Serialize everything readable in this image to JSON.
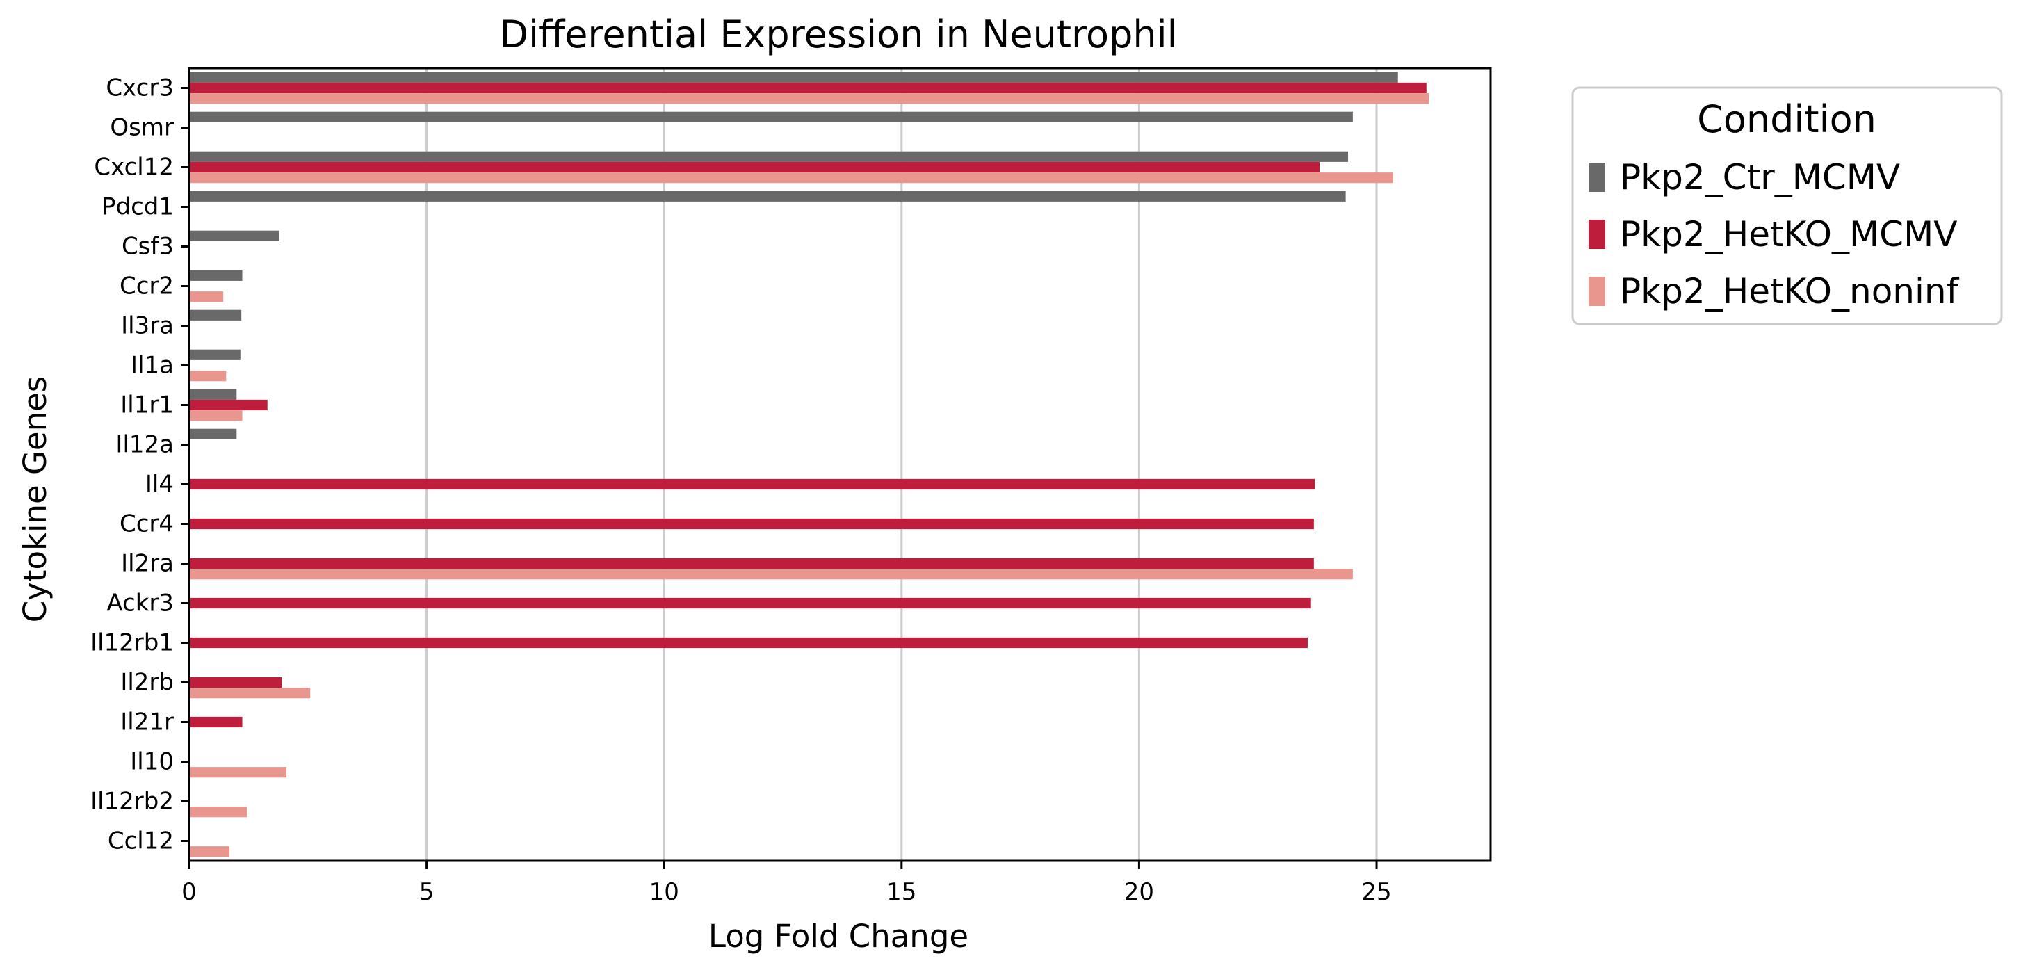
{
  "chart_data": {
    "type": "bar",
    "orientation": "horizontal",
    "title": "Differential Expression in Neutrophil",
    "xlabel": "Log Fold Change",
    "ylabel": "Cytokine Genes",
    "xlim": [
      0,
      27.4
    ],
    "xticks": [
      0,
      5,
      10,
      15,
      20,
      25
    ],
    "grid": "vertical",
    "legend": {
      "title": "Condition",
      "placement": "outside-top-right"
    },
    "categories": [
      "Cxcr3",
      "Osmr",
      "Cxcl12",
      "Pdcd1",
      "Csf3",
      "Ccr2",
      "Il3ra",
      "Il1a",
      "Il1r1",
      "Il12a",
      "Il4",
      "Ccr4",
      "Il2ra",
      "Ackr3",
      "Il12rb1",
      "Il2rb",
      "Il21r",
      "Il10",
      "Il12rb2",
      "Ccl12"
    ],
    "series": [
      {
        "name": "Pkp2_Ctr_MCMV",
        "color": "#696969",
        "values": [
          25.45,
          24.5,
          24.4,
          24.35,
          1.9,
          1.12,
          1.1,
          1.08,
          1.0,
          1.0,
          null,
          null,
          null,
          null,
          null,
          null,
          null,
          null,
          null,
          null
        ]
      },
      {
        "name": "Pkp2_HetKO_MCMV",
        "color": "#be1e3c",
        "values": [
          26.05,
          null,
          23.8,
          null,
          null,
          null,
          null,
          null,
          1.65,
          null,
          23.7,
          23.68,
          23.68,
          23.62,
          23.55,
          1.95,
          1.12,
          null,
          null,
          null
        ]
      },
      {
        "name": "Pkp2_HetKO_noninf",
        "color": "#e9968f",
        "values": [
          26.1,
          null,
          25.35,
          null,
          null,
          0.72,
          null,
          0.78,
          1.12,
          null,
          null,
          null,
          24.5,
          null,
          null,
          2.55,
          null,
          2.05,
          1.22,
          0.85
        ]
      }
    ]
  }
}
